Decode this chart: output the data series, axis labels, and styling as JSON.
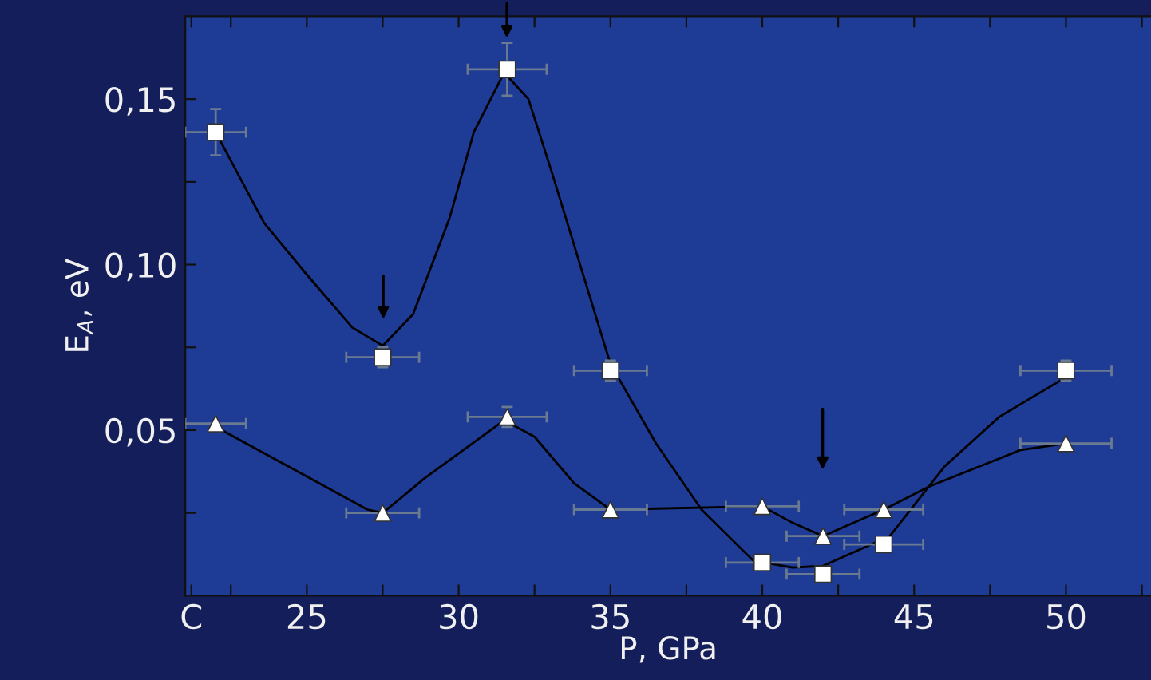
{
  "chart_data": {
    "type": "line",
    "xlabel": "P, GPa",
    "ylabel": "E$_{A}$, eV",
    "xlim": [
      21,
      52.8
    ],
    "ylim": [
      0,
      0.175
    ],
    "xticks": [
      {
        "value": 21.2,
        "label": "C"
      },
      {
        "value": 22.5,
        "label": null
      },
      25,
      {
        "value": 27.5,
        "label": null
      },
      30,
      {
        "value": 32.5,
        "label": null
      },
      35,
      {
        "value": 37.5,
        "label": null
      },
      40,
      {
        "value": 42.5,
        "label": null
      },
      45,
      {
        "value": 47.5,
        "label": null
      },
      50,
      {
        "value": 52.5,
        "label": null
      }
    ],
    "yticks": [
      {
        "value": 0.025,
        "label": null
      },
      {
        "value": 0.05,
        "label": "0,05"
      },
      {
        "value": 0.075,
        "label": null
      },
      {
        "value": 0.1,
        "label": "0,10"
      },
      {
        "value": 0.125,
        "label": null
      },
      {
        "value": 0.15,
        "label": "0,15"
      }
    ],
    "grid": false,
    "series": [
      {
        "color": "#000000",
        "marker": "none",
        "line_style": "solid",
        "x": [
          22,
          23.6,
          25,
          26.5,
          27.5,
          28.5,
          29.7,
          30.5,
          31.5,
          32.3,
          33.1,
          35,
          36.5,
          38,
          39.7,
          41,
          42,
          44.2,
          46,
          47.8,
          50
        ],
        "values": [
          0.14,
          0.1125,
          0.097,
          0.081,
          0.0755,
          0.085,
          0.114,
          0.14,
          0.158,
          0.15,
          0.127,
          0.07,
          0.046,
          0.026,
          0.0106,
          0.0085,
          0.009,
          0.018,
          0.039,
          0.054,
          0.066
        ]
      },
      {
        "color": "#000000",
        "marker": "none",
        "line_style": "solid",
        "x": [
          22,
          25,
          27,
          27.5,
          28.9,
          31.5,
          32.5,
          33.8,
          35,
          40,
          41,
          42,
          43,
          44,
          45.5,
          48.5,
          50
        ],
        "values": [
          0.051,
          0.036,
          0.026,
          0.025,
          0.0356,
          0.053,
          0.048,
          0.034,
          0.026,
          0.027,
          0.022,
          0.018,
          0.022,
          0.026,
          0.033,
          0.044,
          0.046
        ]
      },
      {
        "type": "scatter",
        "color": "#ffffff",
        "marker": "square",
        "x": [
          22,
          27.5,
          31.6,
          35,
          40,
          42,
          44,
          50
        ],
        "values": [
          0.14,
          0.072,
          0.159,
          0.068,
          0.01,
          0.0065,
          0.0155,
          0.068
        ],
        "errors": [
          0.007,
          0.003,
          0.008,
          0.003,
          null,
          null,
          null,
          0.003
        ],
        "xerrors": [
          1,
          1.2,
          1.3,
          1.2,
          1.2,
          1.2,
          1.3,
          1.5
        ]
      },
      {
        "type": "scatter",
        "color": "#ffffff",
        "marker": "triangle",
        "x": [
          22,
          27.5,
          31.6,
          35,
          40,
          42,
          44,
          50
        ],
        "values": [
          0.052,
          0.025,
          0.054,
          0.026,
          0.027,
          0.018,
          0.026,
          0.046
        ],
        "errors": [
          null,
          null,
          0.003,
          null,
          null,
          null,
          null,
          null
        ],
        "xerrors": [
          1,
          1.2,
          1.3,
          1.2,
          1.2,
          1.2,
          1.3,
          1.5
        ]
      }
    ]
  }
}
